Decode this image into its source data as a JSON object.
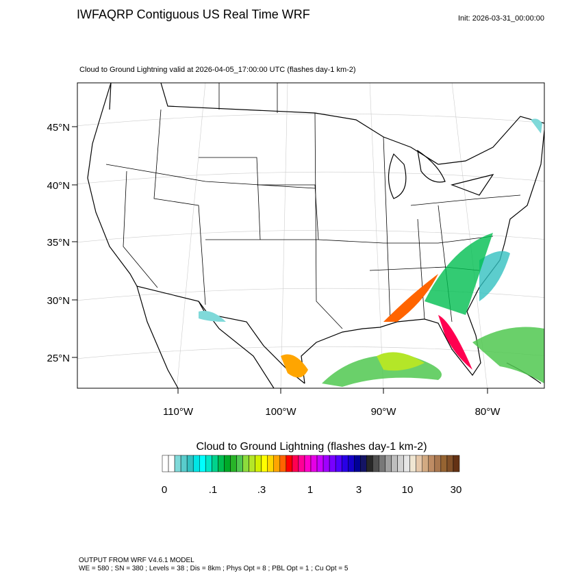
{
  "header": {
    "title": "IWFAQRP Contiguous US Real Time WRF",
    "init": "Init: 2026-03-31_00:00:00"
  },
  "map": {
    "subtitle": "Cloud to Ground Lightning valid at 2026-04-05_17:00:00 UTC   (flashes day-1 km-2)",
    "lat_labels": [
      "45°N",
      "40°N",
      "35°N",
      "30°N",
      "25°N"
    ],
    "lon_labels": [
      "110°W",
      "100°W",
      "90°W",
      "80°W"
    ]
  },
  "colorbar": {
    "title": "Cloud to Ground Lightning  (flashes day-1 km-2)",
    "labels": [
      "0",
      ".1",
      ".3",
      "1",
      "3",
      "10",
      "30"
    ],
    "colors": [
      "#ffffff",
      "#ffffff",
      "#7fd9d9",
      "#59cccc",
      "#33c0c0",
      "#00e5e5",
      "#00ffff",
      "#00e6c8",
      "#00d28c",
      "#00be50",
      "#00aa28",
      "#28b428",
      "#50c850",
      "#8cdc3c",
      "#b4e628",
      "#d2f000",
      "#ffff00",
      "#ffd700",
      "#ffa500",
      "#ff6400",
      "#ff0000",
      "#ff0050",
      "#ff0096",
      "#ff00c8",
      "#e600e6",
      "#c800ff",
      "#a000ff",
      "#7800ff",
      "#5000ff",
      "#2800e6",
      "#1400c8",
      "#000096",
      "#141464",
      "#282828",
      "#505050",
      "#787878",
      "#a0a0a0",
      "#bebebe",
      "#d2d2d2",
      "#e6e6e6",
      "#f0e6d2",
      "#e6c8aa",
      "#d2aa82",
      "#be8c64",
      "#aa7850",
      "#966432",
      "#825028",
      "#643214"
    ]
  },
  "footer": {
    "line1": "OUTPUT FROM WRF V4.6.1 MODEL",
    "line2": "WE = 580 ; SN = 380 ; Levels = 38 ; Dis = 8km ; Phys Opt = 8 ; PBL Opt = 1 ; Cu Opt = 5"
  }
}
